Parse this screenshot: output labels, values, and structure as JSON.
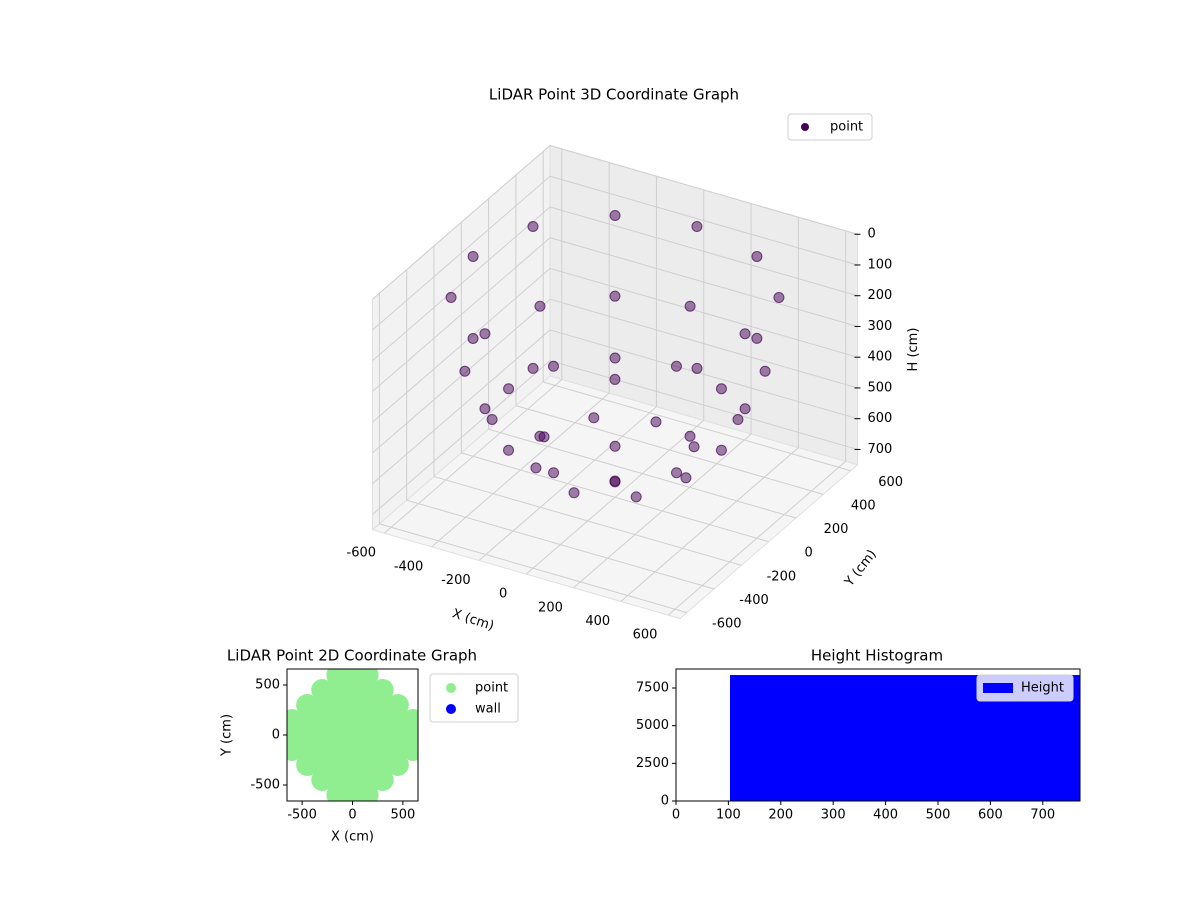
{
  "chart_data": [
    {
      "type": "scatter3d",
      "title": "LiDAR Point 3D Coordinate Graph",
      "xlabel": "X (cm)",
      "ylabel": "Y (cm)",
      "zlabel": "H (cm)",
      "xlim": [
        -650,
        650
      ],
      "ylim": [
        -650,
        650
      ],
      "zlim": [
        750,
        0
      ],
      "xticks": [
        -600,
        -400,
        -200,
        0,
        200,
        400,
        600
      ],
      "yticks": [
        -600,
        -400,
        -200,
        0,
        200,
        400,
        600
      ],
      "zticks": [
        0,
        100,
        200,
        300,
        400,
        500,
        600,
        700
      ],
      "grid": true,
      "legend": "upper right",
      "series": [
        {
          "name": "point",
          "color": "#440154",
          "x": [
            0,
            300,
            212,
            0,
            -212,
            -300,
            -212,
            0,
            212,
            450,
            390,
            225,
            0,
            -225,
            -390,
            -450,
            -390,
            -225,
            0,
            225,
            390,
            550,
            476,
            275,
            0,
            -275,
            -476,
            -550,
            -476,
            -275,
            0,
            275,
            476,
            600,
            520,
            300,
            0,
            -300,
            -520,
            -600,
            -520,
            -300,
            0,
            300,
            520
          ],
          "y": [
            0,
            0,
            212,
            300,
            212,
            0,
            -212,
            -300,
            -212,
            0,
            225,
            390,
            450,
            390,
            225,
            0,
            -225,
            -390,
            -450,
            -390,
            -225,
            0,
            275,
            476,
            550,
            476,
            275,
            0,
            -275,
            -476,
            -550,
            -476,
            -275,
            0,
            300,
            520,
            600,
            520,
            300,
            0,
            -300,
            -520,
            -600,
            -520,
            -300
          ],
          "z": [
            700,
            620,
            620,
            620,
            620,
            620,
            620,
            620,
            620,
            497,
            497,
            497,
            497,
            497,
            497,
            497,
            497,
            497,
            497,
            497,
            497,
            340,
            340,
            340,
            340,
            340,
            340,
            340,
            340,
            340,
            340,
            340,
            340,
            100,
            100,
            100,
            100,
            100,
            100,
            100,
            100,
            100,
            100,
            100,
            100
          ]
        }
      ]
    },
    {
      "type": "scatter",
      "title": "LiDAR Point 2D Coordinate Graph",
      "xlabel": "X (cm)",
      "ylabel": "Y (cm)",
      "xlim": [
        -650,
        650
      ],
      "ylim": [
        -660,
        660
      ],
      "xticks": [
        -500,
        0,
        500
      ],
      "yticks": [
        -500,
        0,
        500
      ],
      "legend": "outside upper right",
      "series": [
        {
          "name": "point",
          "color": "#90ee90",
          "x": [
            -600,
            -600,
            -600,
            -450,
            -450,
            -450,
            -450,
            -450,
            -300,
            -300,
            -300,
            -300,
            -300,
            -300,
            -300,
            -150,
            -150,
            -150,
            -150,
            -150,
            -150,
            -150,
            -150,
            -150,
            0,
            0,
            0,
            0,
            0,
            0,
            0,
            0,
            0,
            150,
            150,
            150,
            150,
            150,
            150,
            150,
            150,
            150,
            300,
            300,
            300,
            300,
            300,
            300,
            300,
            450,
            450,
            450,
            450,
            450,
            600,
            600,
            600
          ],
          "y": [
            -150,
            0,
            150,
            -300,
            -150,
            0,
            150,
            300,
            -450,
            -300,
            -150,
            0,
            150,
            300,
            450,
            -600,
            -450,
            -300,
            -150,
            0,
            150,
            300,
            450,
            600,
            -600,
            -450,
            -300,
            -150,
            0,
            150,
            300,
            450,
            600,
            -600,
            -450,
            -300,
            -150,
            0,
            150,
            300,
            450,
            600,
            -450,
            -300,
            -150,
            0,
            150,
            300,
            450,
            -300,
            -150,
            0,
            150,
            300,
            -150,
            0,
            150
          ]
        },
        {
          "name": "wall",
          "color": "#0000ff",
          "x": [],
          "y": []
        }
      ]
    },
    {
      "type": "histogram",
      "title": "Height Histogram",
      "name": "Height",
      "color": "#0000ff",
      "bins": [
        103,
        771
      ],
      "counts": [
        8360
      ],
      "xlim": [
        0,
        771
      ],
      "ylim": [
        0,
        8760
      ],
      "xticks": [
        0,
        100,
        200,
        300,
        400,
        500,
        600,
        700
      ],
      "yticks": [
        0,
        2500,
        5000,
        7500
      ],
      "legend": "upper right"
    }
  ]
}
